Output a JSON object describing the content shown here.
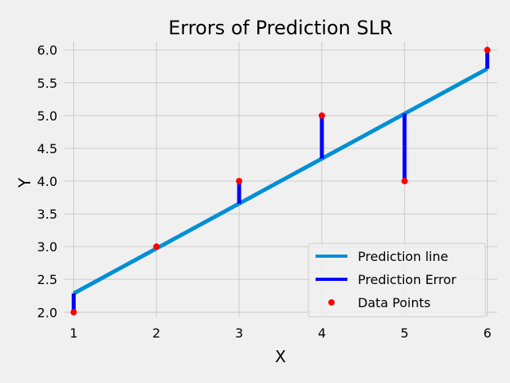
{
  "chart_data": {
    "type": "scatter",
    "title": "Errors of Prediction SLR",
    "xlabel": "X",
    "ylabel": "Y",
    "xlim": [
      0.88,
      6.12
    ],
    "ylim": [
      1.93,
      6.13
    ],
    "xticks": [
      1,
      2,
      3,
      4,
      5,
      6
    ],
    "yticks": [
      2.0,
      2.5,
      3.0,
      3.5,
      4.0,
      4.5,
      5.0,
      5.5,
      6.0
    ],
    "grid": true,
    "legend_position": "lower-right",
    "series": [
      {
        "name": "Prediction line",
        "kind": "line",
        "color": "#008fd5",
        "x": [
          1,
          6
        ],
        "y": [
          2.286,
          5.714
        ]
      },
      {
        "name": "Prediction Error",
        "kind": "error-segments",
        "color": "#0000ff",
        "x": [
          1,
          2,
          3,
          4,
          5,
          6
        ],
        "y_from": [
          2.0,
          3.0,
          4.0,
          5.0,
          4.0,
          6.0
        ],
        "y_to": [
          2.286,
          2.971,
          3.657,
          4.343,
          5.029,
          5.714
        ]
      },
      {
        "name": "Data Points",
        "kind": "scatter",
        "color": "#ff0000",
        "x": [
          1,
          2,
          3,
          4,
          5,
          6
        ],
        "y": [
          2.0,
          3.0,
          4.0,
          5.0,
          4.0,
          6.0
        ]
      }
    ]
  }
}
